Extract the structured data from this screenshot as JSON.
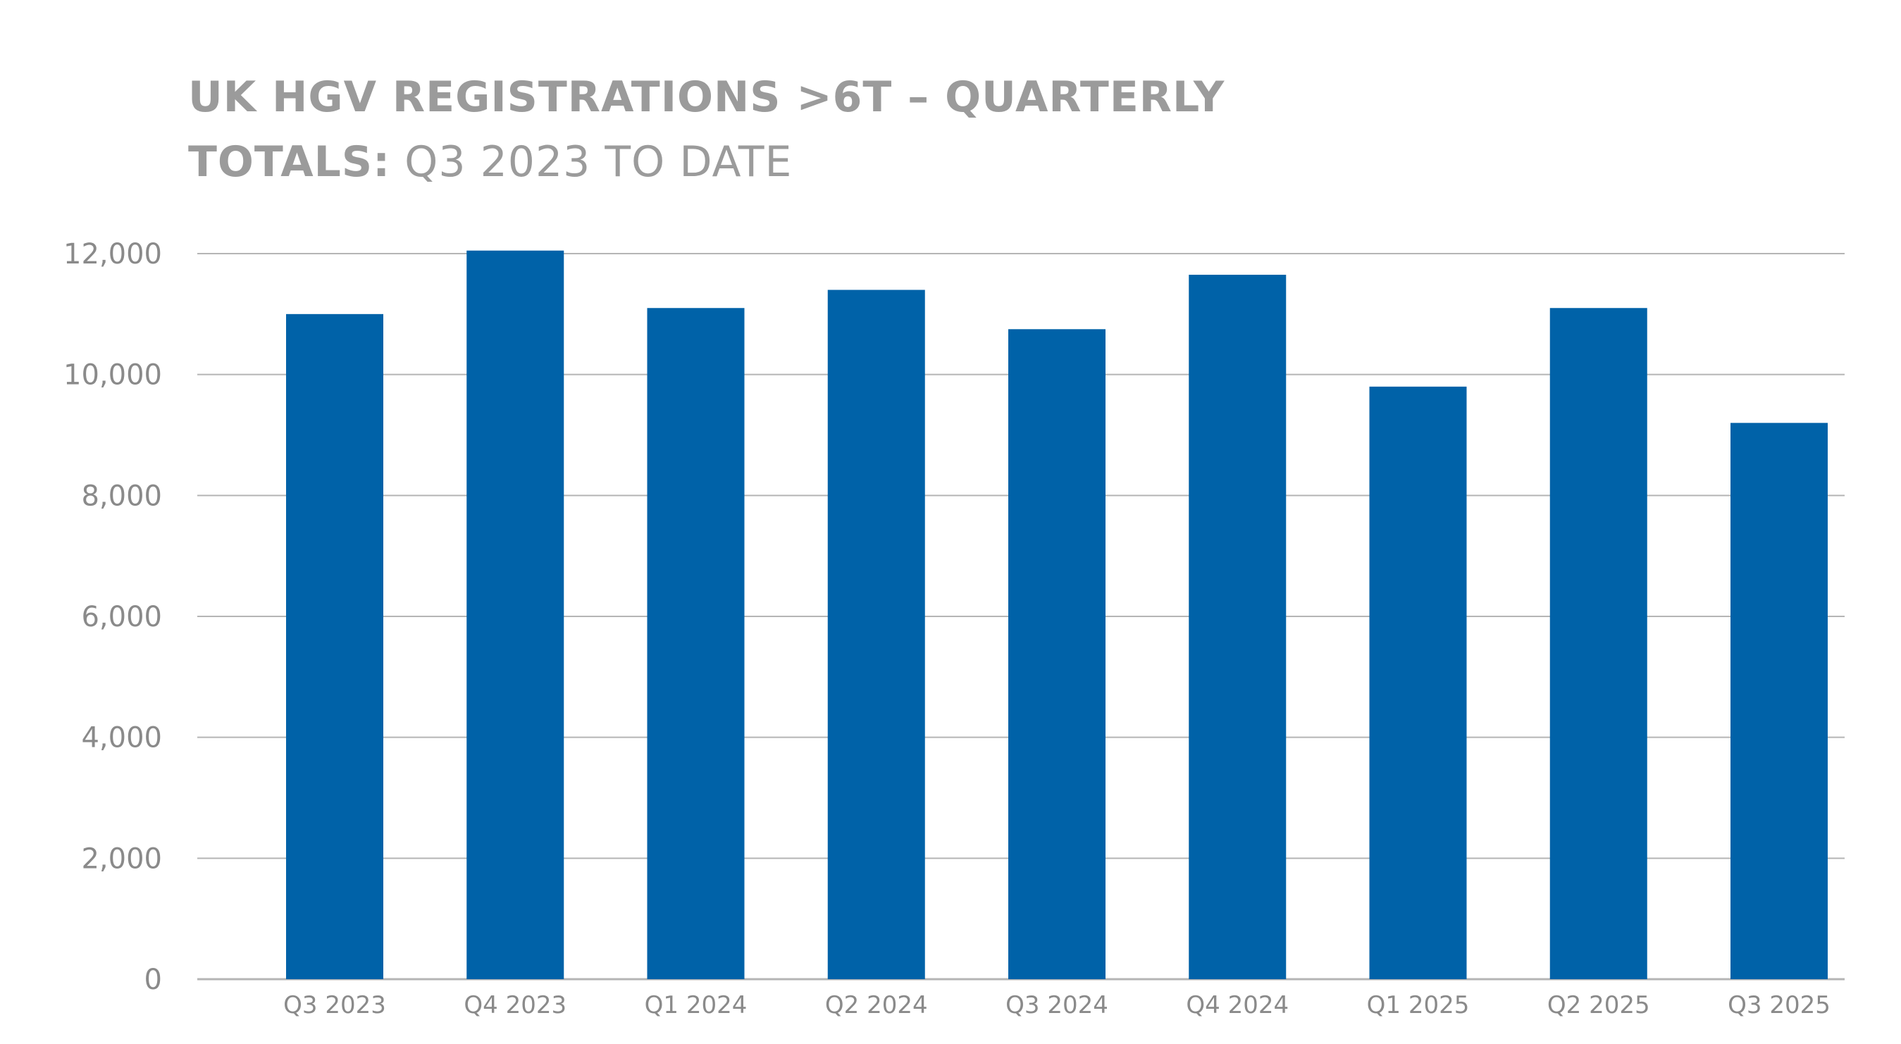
{
  "chart_data": {
    "type": "bar",
    "title_line1": "UK HGV REGISTRATIONS >6T – QUARTERLY",
    "title_line2_bold": "TOTALS:",
    "title_line2_light": " Q3 2023 TO DATE",
    "categories": [
      "Q3 2023",
      "Q4 2023",
      "Q1 2024",
      "Q2 2024",
      "Q3 2024",
      "Q4 2024",
      "Q1 2025",
      "Q2 2025",
      "Q3 2025"
    ],
    "values": [
      11000,
      12050,
      11100,
      11400,
      10750,
      11650,
      9800,
      11100,
      9200
    ],
    "ylim": [
      0,
      12000
    ],
    "yticks": [
      0,
      2000,
      4000,
      6000,
      8000,
      10000,
      12000
    ],
    "ytick_labels": [
      "0",
      "2,000",
      "4,000",
      "6,000",
      "8,000",
      "10,000",
      "12,000"
    ],
    "xlabel": "",
    "ylabel": "",
    "grid": true,
    "bar_color": "#0062a8",
    "grid_color": "#b5b5b5",
    "text_color": "#9b9b9b"
  }
}
